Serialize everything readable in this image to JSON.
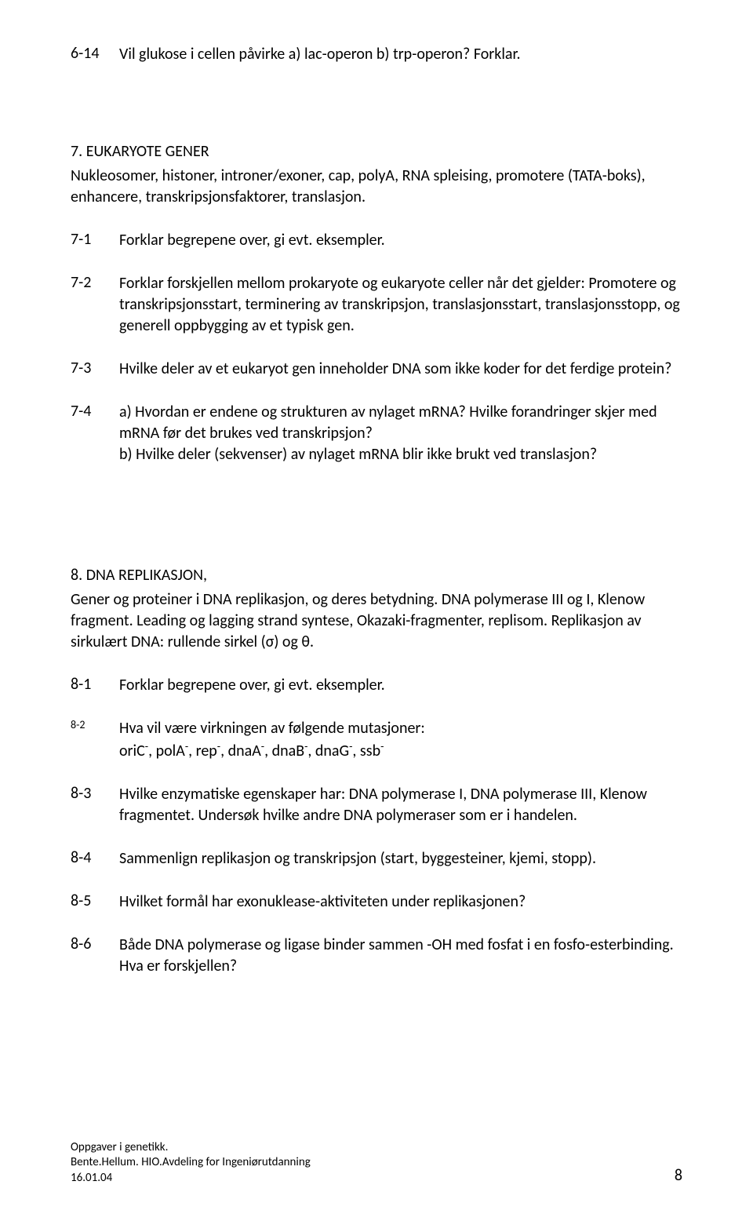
{
  "q614": {
    "num": "6-14",
    "txt": "Vil glukose i cellen påvirke a) lac-operon  b) trp-operon? Forklar."
  },
  "sec7": {
    "title": "7. EUKARYOTE GENER",
    "desc": "Nukleosomer, histoner, introner/exoner, cap, polyA, RNA spleising, promotere (TATA-boks), enhancere, transkripsjonsfaktorer, translasjon."
  },
  "q71": {
    "num": "7-1",
    "txt": "Forklar begrepene over, gi evt. eksempler."
  },
  "q72": {
    "num": "7-2",
    "txt": "Forklar forskjellen mellom prokaryote og eukaryote celler når det gjelder: Promotere og transkripsjonsstart, terminering av transkripsjon, translasjonsstart, translasjonsstopp, og generell oppbygging av et typisk gen."
  },
  "q73": {
    "num": "7-3",
    "txt": "Hvilke deler av et eukaryot gen inneholder DNA som ikke koder for det ferdige protein?"
  },
  "q74": {
    "num": "7-4",
    "a": "a) Hvordan er endene og strukturen av nylaget mRNA? Hvilke forandringer skjer med mRNA før det brukes ved transkripsjon?",
    "b": "b) Hvilke deler (sekvenser) av nylaget mRNA blir ikke brukt ved translasjon?"
  },
  "sec8": {
    "title": "8. DNA REPLIKASJON,",
    "desc": "Gener og proteiner i DNA replikasjon, og deres betydning. DNA polymerase III og I, Klenow fragment. Leading og lagging strand syntese, Okazaki-fragmenter, replisom. Replikasjon av sirkulært DNA: rullende sirkel (σ) og θ."
  },
  "q81": {
    "num": "8-1",
    "txt": "Forklar begrepene over, gi evt. eksempler."
  },
  "q82": {
    "num": "8-2",
    "line1": "Hva vil være virkningen av følgende mutasjoner:",
    "genes": [
      "oriC",
      "polA",
      "rep",
      "dnaA",
      "dnaB",
      "dnaG",
      "ssb"
    ]
  },
  "q83": {
    "num": "8-3",
    "txt": "Hvilke enzymatiske egenskaper har: DNA polymerase I, DNA polymerase III, Klenow fragmentet. Undersøk hvilke andre DNA polymeraser som er i handelen."
  },
  "q84": {
    "num": "8-4",
    "txt": "Sammenlign replikasjon og transkripsjon (start, byggesteiner, kjemi, stopp)."
  },
  "q85": {
    "num": "8-5",
    "txt": "Hvilket formål har exonuklease-aktiviteten under replikasjonen?"
  },
  "q86": {
    "num": "8-6",
    "txt": "Både DNA polymerase og ligase binder sammen -OH med fosfat i en fosfo-esterbinding. Hva er forskjellen?"
  },
  "footer": {
    "l1": "Oppgaver i genetikk.",
    "l2": "Bente.Hellum. HIO.Avdeling for Ingeniørutdanning",
    "l3": "16.01.04",
    "page": "8"
  }
}
